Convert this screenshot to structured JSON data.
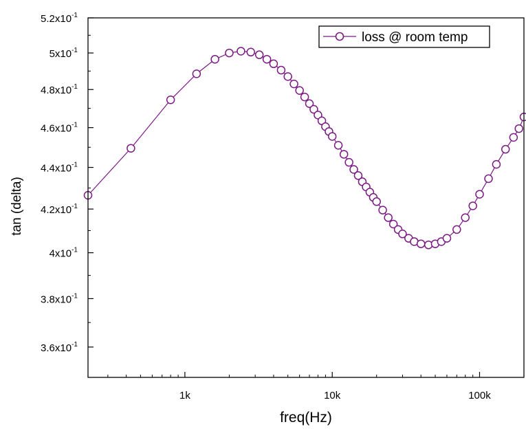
{
  "chart_data": {
    "type": "line",
    "title": "",
    "xlabel": "freq(Hz)",
    "ylabel": "tan (delta)",
    "x_scale": "log",
    "y_scale": "log",
    "xlim": [
      220,
      200000
    ],
    "ylim": [
      0.348,
      0.52
    ],
    "grid": false,
    "legend_position": "top-right",
    "x_ticks": [
      {
        "value": 1000,
        "label": "1k"
      },
      {
        "value": 10000,
        "label": "10k"
      },
      {
        "value": 100000,
        "label": "100k"
      }
    ],
    "y_ticks": [
      {
        "value": 0.36,
        "mantissa": "3.6x10",
        "exp": "-1"
      },
      {
        "value": 0.38,
        "mantissa": "3.8x10",
        "exp": "-1"
      },
      {
        "value": 0.4,
        "mantissa": "4x10",
        "exp": "-1"
      },
      {
        "value": 0.42,
        "mantissa": "4.2x10",
        "exp": "-1"
      },
      {
        "value": 0.44,
        "mantissa": "4.4x10",
        "exp": "-1"
      },
      {
        "value": 0.46,
        "mantissa": "4.6x10",
        "exp": "-1"
      },
      {
        "value": 0.48,
        "mantissa": "4.8x10",
        "exp": "-1"
      },
      {
        "value": 0.5,
        "mantissa": "5x10",
        "exp": "-1"
      },
      {
        "value": 0.52,
        "mantissa": "5.2x10",
        "exp": "-1"
      }
    ],
    "series": [
      {
        "name": "loss @ room temp",
        "color": "#7b1a85",
        "marker": "open-circle",
        "points": [
          [
            220,
            0.4265
          ],
          [
            430,
            0.4495
          ],
          [
            800,
            0.4745
          ],
          [
            1200,
            0.4885
          ],
          [
            1600,
            0.4965
          ],
          [
            2000,
            0.5
          ],
          [
            2400,
            0.501
          ],
          [
            2800,
            0.5005
          ],
          [
            3200,
            0.499
          ],
          [
            3600,
            0.4965
          ],
          [
            4000,
            0.494
          ],
          [
            4500,
            0.4905
          ],
          [
            5000,
            0.487
          ],
          [
            5500,
            0.483
          ],
          [
            6000,
            0.4795
          ],
          [
            6500,
            0.476
          ],
          [
            7000,
            0.4725
          ],
          [
            7500,
            0.4695
          ],
          [
            8000,
            0.4665
          ],
          [
            8500,
            0.4635
          ],
          [
            9000,
            0.4605
          ],
          [
            9500,
            0.458
          ],
          [
            10000,
            0.4555
          ],
          [
            11000,
            0.451
          ],
          [
            12000,
            0.4465
          ],
          [
            13000,
            0.4425
          ],
          [
            14000,
            0.439
          ],
          [
            15000,
            0.436
          ],
          [
            16000,
            0.433
          ],
          [
            17000,
            0.4305
          ],
          [
            18000,
            0.428
          ],
          [
            19000,
            0.4255
          ],
          [
            20000,
            0.4235
          ],
          [
            22000,
            0.4195
          ],
          [
            24000,
            0.416
          ],
          [
            26000,
            0.413
          ],
          [
            28000,
            0.4105
          ],
          [
            30000,
            0.4085
          ],
          [
            33000,
            0.4065
          ],
          [
            36000,
            0.405
          ],
          [
            40000,
            0.404
          ],
          [
            45000,
            0.4035
          ],
          [
            50000,
            0.404
          ],
          [
            55000,
            0.405
          ],
          [
            60000,
            0.4065
          ],
          [
            70000,
            0.4105
          ],
          [
            80000,
            0.416
          ],
          [
            90000,
            0.4215
          ],
          [
            100000,
            0.427
          ],
          [
            115000,
            0.4345
          ],
          [
            130000,
            0.4415
          ],
          [
            150000,
            0.449
          ],
          [
            170000,
            0.455
          ],
          [
            185000,
            0.4595
          ],
          [
            200000,
            0.4655
          ]
        ]
      }
    ]
  }
}
